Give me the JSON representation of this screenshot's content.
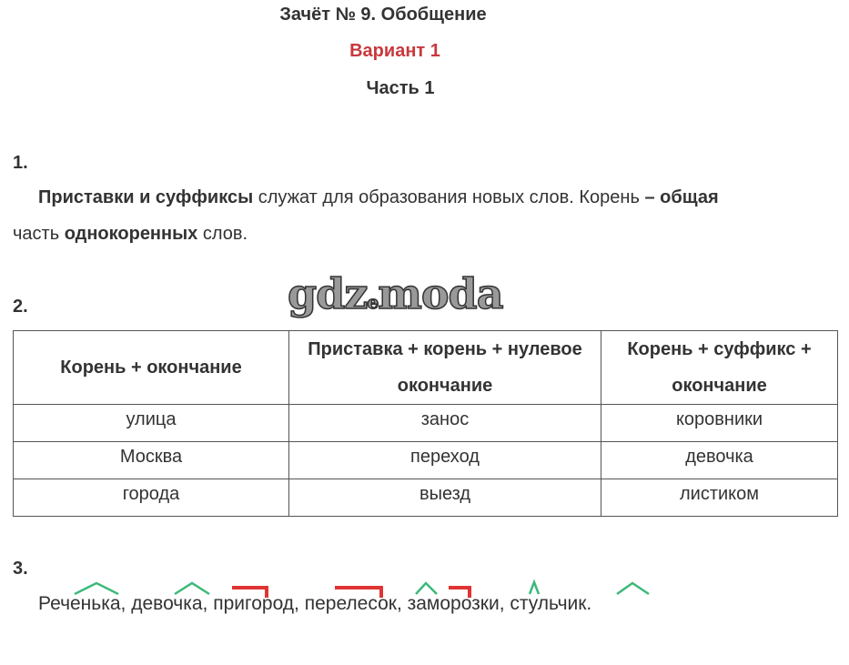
{
  "header": {
    "title": "Зачёт № 9. Обобщение",
    "variant": "Вариант 1",
    "part": "Часть 1"
  },
  "colors": {
    "variant": "#c8383c",
    "suffix_mark": "#3cb97a",
    "prefix_mark": "#e03434"
  },
  "task1": {
    "number": "1.",
    "s1": "Приставки и суффиксы",
    "s2": " служат для образования новых слов. Корень ",
    "s3": "– общая",
    "s4": "часть ",
    "s5": "однокоренных",
    "s6": " слов."
  },
  "watermark": "gdz.moda",
  "task2": {
    "number": "2.",
    "headers": [
      "Корень + окончание",
      "Приставка + корень + нулевое окончание",
      "Корень + суффикс + окончание"
    ],
    "rows": [
      [
        "улица",
        "занос",
        "коровники"
      ],
      [
        "Москва",
        "переход",
        "девочка"
      ],
      [
        "города",
        "выезд",
        "листиком"
      ]
    ]
  },
  "task3": {
    "number": "3.",
    "text": "Реченька, девочка, пригород, перелесок, заморозки, стульчик."
  }
}
